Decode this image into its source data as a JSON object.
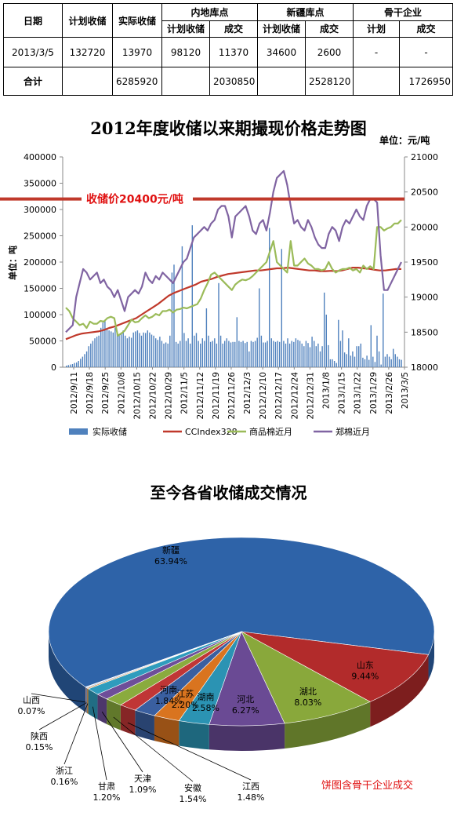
{
  "table": {
    "header": {
      "date": "日期",
      "planned": "计划收储",
      "actual": "实际收储",
      "inland": "内地库点",
      "xinjiang": "新疆库点",
      "backbone": "骨干企业",
      "sub_planned": "计划收储",
      "sub_deal": "成交",
      "sub_plan": "计划"
    },
    "rows": [
      [
        "2013/3/5",
        "132720",
        "13970",
        "98120",
        "11370",
        "34600",
        "2600",
        "-",
        "-"
      ],
      [
        "合计",
        "",
        "6285920",
        "",
        "2030850",
        "",
        "2528120",
        "",
        "1726950"
      ]
    ]
  },
  "chart_data": [
    {
      "type": "bar+line",
      "title": "2012年度收储以来期撮现价格走势图",
      "unit_right": "单位：元/吨",
      "ylabel": "单位：吨",
      "ylim": [
        0,
        400000
      ],
      "y_ticks": [
        0,
        50000,
        100000,
        150000,
        200000,
        250000,
        300000,
        350000,
        400000
      ],
      "y2lim": [
        18000,
        21000
      ],
      "y2_ticks": [
        18000,
        18500,
        19000,
        19500,
        20000,
        20500,
        21000
      ],
      "x_ticks": [
        "2012/9/11",
        "2012/9/18",
        "2012/9/25",
        "2012/10/8",
        "2012/10/15",
        "2012/10/22",
        "2012/10/29",
        "2012/11/5",
        "2012/11/12",
        "2012/11/19",
        "2012/11/26",
        "2012/12/3",
        "2012/12/10",
        "2012/12/17",
        "2012/12/24",
        "2012/12/31",
        "2013/1/8",
        "2013/1/15",
        "2013/1/22",
        "2013/1/29",
        "2013/2/26",
        "2013/3/5"
      ],
      "annotation": "收储价20400元/吨",
      "annotation_value": 20400,
      "bar_series": {
        "name": "实际收储",
        "color": "#4f81bd",
        "values": [
          3000,
          4000,
          5000,
          6000,
          8000,
          9000,
          12000,
          16000,
          20000,
          25000,
          30000,
          40000,
          45000,
          50000,
          55000,
          58000,
          60000,
          75000,
          85000,
          90000,
          72000,
          70000,
          68000,
          66000,
          75000,
          66000,
          62000,
          65000,
          70000,
          60000,
          55000,
          58000,
          56000,
          66000,
          68000,
          70000,
          65000,
          60000,
          66000,
          65000,
          70000,
          66000,
          62000,
          60000,
          55000,
          52000,
          58000,
          50000,
          45000,
          47000,
          45000,
          60000,
          180000,
          195000,
          48000,
          45000,
          50000,
          230000,
          65000,
          50000,
          55000,
          45000,
          270000,
          60000,
          65000,
          50000,
          45000,
          55000,
          50000,
          112000,
          60000,
          48000,
          50000,
          55000,
          45000,
          160000,
          60000,
          45000,
          50000,
          55000,
          50000,
          47000,
          48000,
          48000,
          95000,
          50000,
          48000,
          50000,
          46000,
          48000,
          30000,
          50000,
          48000,
          50000,
          56000,
          150000,
          60000,
          47000,
          47000,
          50000,
          265000,
          55000,
          50000,
          48000,
          50000,
          48000,
          225000,
          50000,
          45000,
          55000,
          45000,
          50000,
          48000,
          55000,
          52000,
          50000,
          45000,
          40000,
          50000,
          46000,
          38000,
          58000,
          50000,
          40000,
          45000,
          30000,
          40000,
          142000,
          100000,
          42000,
          15000,
          15000,
          12000,
          8000,
          90000,
          50000,
          70000,
          28000,
          25000,
          55000,
          22000,
          30000,
          20000,
          40000,
          40000,
          45000,
          18000,
          15000,
          22000,
          14000,
          80000,
          20000,
          10000,
          60000,
          30000,
          5000,
          140000,
          20000,
          25000,
          20000,
          15000,
          35000,
          25000,
          20000,
          15000,
          13970
        ]
      },
      "line_series": [
        {
          "name": "CCIndex328",
          "color": "#c0392b",
          "values": [
            18400,
            18430,
            18460,
            18480,
            18490,
            18500,
            18510,
            18530,
            18560,
            18580,
            18610,
            18640,
            18670,
            18700,
            18750,
            18800,
            18850,
            18900,
            18960,
            19020,
            19060,
            19090,
            19120,
            19150,
            19180,
            19220,
            19240,
            19260,
            19290,
            19310,
            19330,
            19340,
            19350,
            19360,
            19370,
            19380,
            19380,
            19390,
            19400,
            19410,
            19410,
            19420,
            19410,
            19400,
            19390,
            19380,
            19380,
            19370,
            19370,
            19375,
            19370,
            19380,
            19400,
            19420,
            19420,
            19410,
            19405,
            19390,
            19380,
            19380,
            19390,
            19400,
            19400
          ]
        },
        {
          "name": "商品棉近月",
          "color": "#9bbb59",
          "values": [
            18850,
            18800,
            18700,
            18650,
            18600,
            18620,
            18560,
            18650,
            18620,
            18620,
            18660,
            18650,
            18700,
            18720,
            18700,
            18450,
            18480,
            18520,
            18600,
            18680,
            18640,
            18650,
            18700,
            18740,
            18700,
            18720,
            18760,
            18740,
            18800,
            18800,
            18820,
            18780,
            18820,
            18830,
            18850,
            18840,
            18860,
            18880,
            18900,
            18980,
            19100,
            19200,
            19320,
            19350,
            19300,
            19250,
            19200,
            19150,
            19100,
            19180,
            19220,
            19250,
            19240,
            19260,
            19300,
            19350,
            19400,
            19450,
            19500,
            19650,
            19800,
            19500,
            19450,
            19400,
            19350,
            19800,
            19450,
            19450,
            19500,
            19550,
            19480,
            19450,
            19400,
            19400,
            19380,
            19400,
            19500,
            19400,
            19350,
            19380,
            19400,
            19400,
            19420,
            19380,
            19400,
            19350,
            19450,
            19400,
            19440,
            19400,
            20000,
            20000,
            19950,
            19980,
            20000,
            20050,
            20050,
            20100
          ]
        },
        {
          "name": "郑棉近月",
          "color": "#8064a2",
          "values": [
            18500,
            18550,
            18600,
            19000,
            19200,
            19400,
            19350,
            19250,
            19300,
            19350,
            19200,
            19250,
            19150,
            19100,
            19000,
            19100,
            18950,
            18800,
            19000,
            19050,
            19100,
            19050,
            19150,
            19350,
            19250,
            19200,
            19300,
            19250,
            19350,
            19300,
            19250,
            19200,
            19300,
            19400,
            19500,
            19550,
            19700,
            19850,
            19900,
            19950,
            20000,
            19950,
            20050,
            20100,
            20250,
            20300,
            20300,
            20150,
            19850,
            20150,
            20200,
            20250,
            20300,
            20150,
            19950,
            19900,
            20050,
            20100,
            19950,
            20200,
            20500,
            20700,
            20750,
            20800,
            20600,
            20300,
            20050,
            20100,
            20000,
            19950,
            20100,
            20000,
            19850,
            19750,
            19700,
            19700,
            19900,
            20000,
            19950,
            19800,
            20000,
            20100,
            20050,
            20150,
            20250,
            20150,
            20100,
            20300,
            20400,
            20400,
            20350,
            19600,
            19100,
            19100,
            19200,
            19300,
            19400,
            19500
          ]
        }
      ],
      "legend_position": "bottom",
      "grid": false
    },
    {
      "type": "pie",
      "title": "至今各省收储成交情况",
      "note": "饼图含骨干企业成交",
      "slices": [
        {
          "label": "新疆",
          "pct": "63.94%",
          "value": 63.94,
          "color": "#2e63a8"
        },
        {
          "label": "山东",
          "pct": "9.44%",
          "value": 9.44,
          "color": "#b22b2b"
        },
        {
          "label": "湖北",
          "pct": "8.03%",
          "value": 8.03,
          "color": "#89a83b"
        },
        {
          "label": "河北",
          "pct": "6.27%",
          "value": 6.27,
          "color": "#6a4a94"
        },
        {
          "label": "湖南",
          "pct": "2.58%",
          "value": 2.58,
          "color": "#2b93b3"
        },
        {
          "label": "江苏",
          "pct": "2.20%",
          "value": 2.2,
          "color": "#d9741f"
        },
        {
          "label": "河南",
          "pct": "1.84%",
          "value": 1.84,
          "color": "#3a5fa0"
        },
        {
          "label": "江西",
          "pct": "1.48%",
          "value": 1.48,
          "color": "#c03636"
        },
        {
          "label": "安徽",
          "pct": "1.54%",
          "value": 1.54,
          "color": "#8aab3e"
        },
        {
          "label": "天津",
          "pct": "1.09%",
          "value": 1.09,
          "color": "#6e4e99"
        },
        {
          "label": "甘肃",
          "pct": "1.20%",
          "value": 1.2,
          "color": "#2f9cbd"
        },
        {
          "label": "浙江",
          "pct": "0.16%",
          "value": 0.16,
          "color": "#e08a2b"
        },
        {
          "label": "陕西",
          "pct": "0.15%",
          "value": 0.15,
          "color": "#8fa8d1"
        },
        {
          "label": "山西",
          "pct": "0.07%",
          "value": 0.07,
          "color": "#d68e8e"
        }
      ]
    }
  ]
}
